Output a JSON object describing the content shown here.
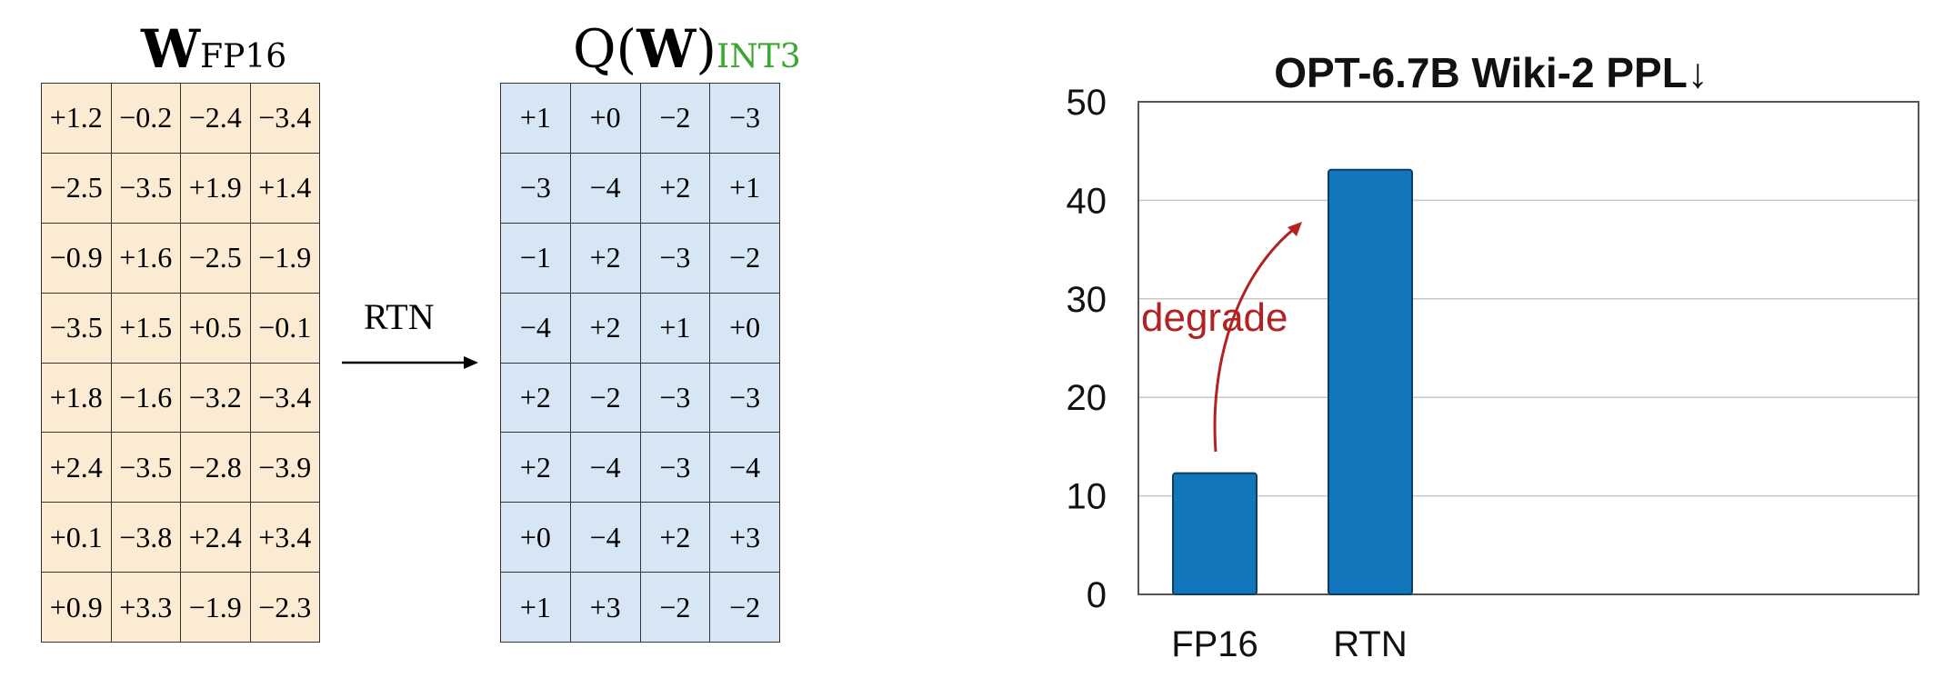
{
  "left_matrix": {
    "title_main": "W",
    "title_sub": "FP16",
    "bg": "#fcebd3",
    "rows": [
      [
        "+1.2",
        "−0.2",
        "−2.4",
        "−3.4"
      ],
      [
        "−2.5",
        "−3.5",
        "+1.9",
        "+1.4"
      ],
      [
        "−0.9",
        "+1.6",
        "−2.5",
        "−1.9"
      ],
      [
        "−3.5",
        "+1.5",
        "+0.5",
        "−0.1"
      ],
      [
        "+1.8",
        "−1.6",
        "−3.2",
        "−3.4"
      ],
      [
        "+2.4",
        "−3.5",
        "−2.8",
        "−3.9"
      ],
      [
        "+0.1",
        "−3.8",
        "+2.4",
        "+3.4"
      ],
      [
        "+0.9",
        "+3.3",
        "−1.9",
        "−2.3"
      ]
    ]
  },
  "arrow": {
    "label": "RTN"
  },
  "right_matrix": {
    "title_pre": "Q(",
    "title_bold": "W",
    "title_post": ")",
    "title_sub": "INT3",
    "sub_color": "#3aa82f",
    "bg": "#d6e6f5",
    "rows": [
      [
        "+1",
        "+0",
        "−2",
        "−3"
      ],
      [
        "−3",
        "−4",
        "+2",
        "+1"
      ],
      [
        "−1",
        "+2",
        "−3",
        "−2"
      ],
      [
        "−4",
        "+2",
        "+1",
        "+0"
      ],
      [
        "+2",
        "−2",
        "−3",
        "−3"
      ],
      [
        "+2",
        "−4",
        "−3",
        "−4"
      ],
      [
        "+0",
        "−4",
        "+2",
        "+3"
      ],
      [
        "+1",
        "+3",
        "−2",
        "−2"
      ]
    ]
  },
  "chart_data": {
    "type": "bar",
    "title": "OPT-6.7B Wiki-2 PPL↓",
    "categories": [
      "FP16",
      "RTN"
    ],
    "values": [
      12.3,
      43.1
    ],
    "ylim": [
      0,
      50
    ],
    "yticks": [
      "0",
      "10",
      "20",
      "30",
      "40",
      "50"
    ],
    "grid": true,
    "bar_color": "#1376bd",
    "annotation": {
      "text": "degrade",
      "color": "#b22222"
    }
  }
}
